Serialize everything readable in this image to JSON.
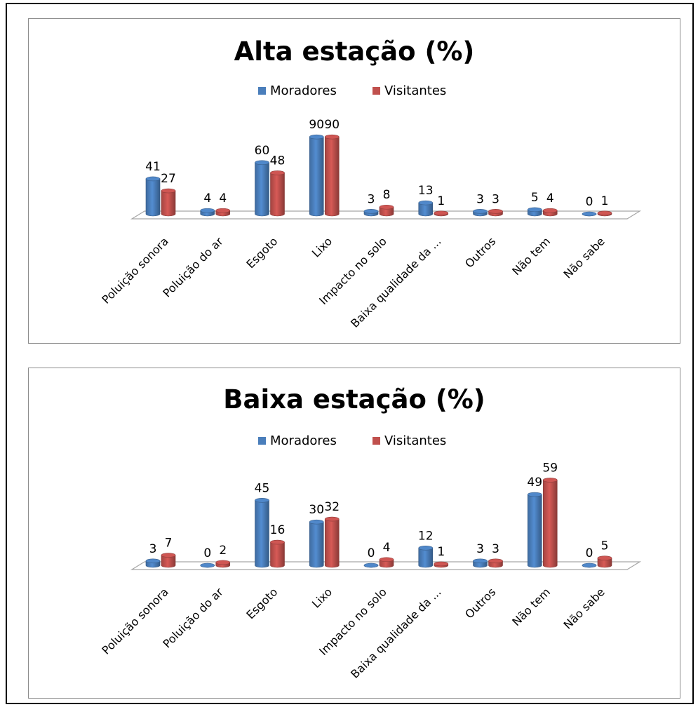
{
  "colors": {
    "moradores": "#4a7ebb",
    "visitantes": "#c0504d",
    "floor": "#ffffff",
    "floor_stroke": "#a6a6a6"
  },
  "chart_data": [
    {
      "type": "bar",
      "title": "Alta estação (%)",
      "legend_position": "top-center",
      "categories": [
        "Poluição sonora",
        "Poluição do ar",
        "Esgoto",
        "Lixo",
        "Impacto no solo",
        "Baixa qualidade da ...",
        "Outros",
        "Não tem",
        "Não sabe"
      ],
      "series": [
        {
          "name": "Moradores",
          "values": [
            41,
            4,
            60,
            90,
            3,
            13,
            3,
            5,
            0
          ]
        },
        {
          "name": "Visitantes",
          "values": [
            27,
            4,
            48,
            90,
            8,
            1,
            3,
            4,
            1
          ]
        }
      ],
      "ylim": [
        0,
        100
      ],
      "grid": false
    },
    {
      "type": "bar",
      "title": "Baixa estação (%)",
      "legend_position": "top-center",
      "categories": [
        "Poluição sonora",
        "Poluição do ar",
        "Esgoto",
        "Lixo",
        "Impacto no solo",
        "Baixa qualidade da ...",
        "Outros",
        "Não tem",
        "Não sabe"
      ],
      "series": [
        {
          "name": "Moradores",
          "values": [
            3,
            0,
            45,
            30,
            0,
            12,
            3,
            49,
            0
          ]
        },
        {
          "name": "Visitantes",
          "values": [
            7,
            2,
            16,
            32,
            4,
            1,
            3,
            59,
            5
          ]
        }
      ],
      "ylim": [
        0,
        100
      ],
      "grid": false
    }
  ]
}
